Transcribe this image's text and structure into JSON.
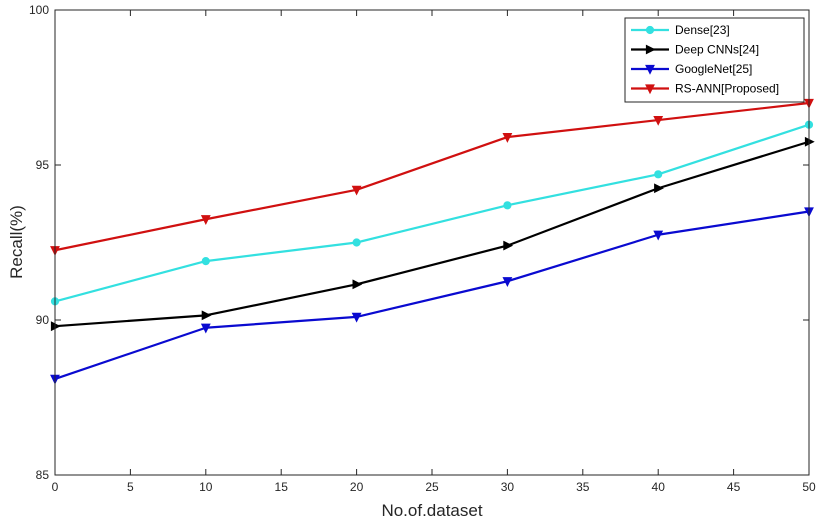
{
  "chart_data": {
    "type": "line",
    "title": "",
    "xlabel": "No.of.dataset",
    "ylabel": "Recall(%)",
    "xlim": [
      0,
      50
    ],
    "ylim": [
      85,
      100
    ],
    "xticks": [
      0,
      5,
      10,
      15,
      20,
      25,
      30,
      35,
      40,
      45,
      50
    ],
    "yticks": [
      85,
      90,
      95,
      100
    ],
    "grid": false,
    "legend_position": "top-right",
    "x": [
      0,
      10,
      20,
      30,
      40,
      50
    ],
    "series": [
      {
        "name": "Dense[23]",
        "color": "#33e0e0",
        "marker": "circle",
        "values": [
          90.6,
          91.9,
          92.5,
          93.7,
          94.7,
          96.3
        ]
      },
      {
        "name": "Deep CNNs[24]",
        "color": "#000000",
        "marker": "triangle-right",
        "values": [
          89.8,
          90.15,
          91.15,
          92.4,
          94.25,
          95.75
        ]
      },
      {
        "name": "GoogleNet[25]",
        "color": "#0a0ad0",
        "marker": "triangle-down",
        "values": [
          88.1,
          89.75,
          90.1,
          91.25,
          92.75,
          93.5
        ]
      },
      {
        "name": "RS-ANN[Proposed]",
        "color": "#d01010",
        "marker": "triangle-down",
        "values": [
          92.25,
          93.25,
          94.2,
          95.9,
          96.45,
          97.0
        ]
      }
    ]
  }
}
